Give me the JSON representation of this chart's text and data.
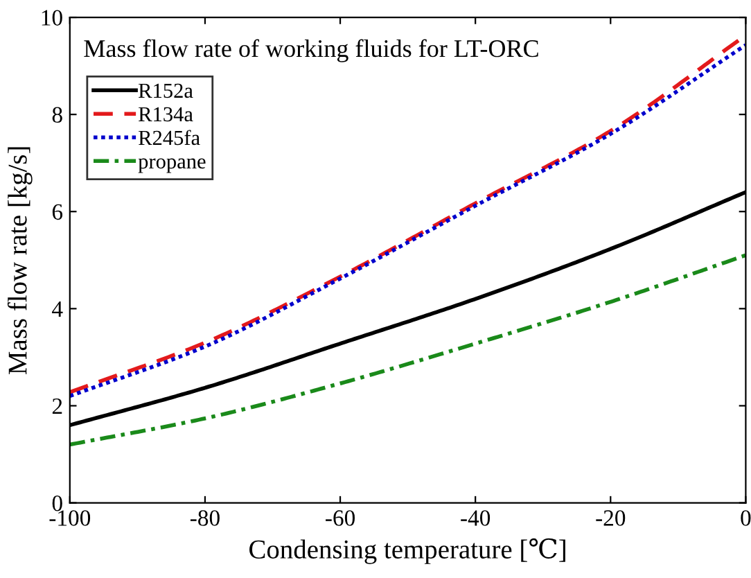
{
  "chart_data": {
    "type": "line",
    "title": "Mass flow rate of working fluids for LT-ORC",
    "xlabel": "Condensing temperature [℃]",
    "ylabel": "Mass flow rate [kg/s]",
    "x": [
      -100,
      -80,
      -60,
      -40,
      -20,
      0
    ],
    "series": [
      {
        "name": "R152a",
        "color": "#000000",
        "line_style": "solid",
        "values": [
          1.6,
          2.37,
          3.28,
          4.2,
          5.23,
          6.4
        ]
      },
      {
        "name": "R134a",
        "color": "#e31a1c",
        "line_style": "dashed",
        "values": [
          2.28,
          3.3,
          4.66,
          6.17,
          7.66,
          9.63
        ]
      },
      {
        "name": "R245fa",
        "color": "#0000cc",
        "line_style": "dotted",
        "values": [
          2.2,
          3.22,
          4.62,
          6.12,
          7.6,
          9.43
        ]
      },
      {
        "name": "propane",
        "color": "#1a8a1a",
        "line_style": "dashdot",
        "values": [
          1.2,
          1.74,
          2.46,
          3.28,
          4.14,
          5.1
        ]
      }
    ],
    "xlim": [
      -100,
      0
    ],
    "xticks": [
      -100,
      -80,
      -60,
      -40,
      -20,
      0
    ],
    "ylim": [
      0,
      10
    ],
    "yticks": [
      0,
      2,
      4,
      6,
      8,
      10
    ],
    "legend": "top left",
    "grid": false
  }
}
